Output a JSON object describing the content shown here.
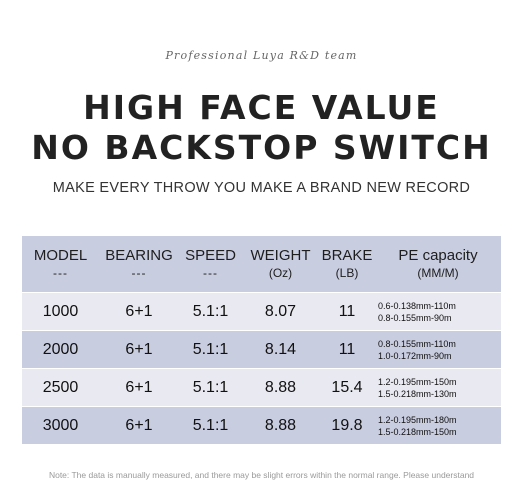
{
  "tagline": "Professional Luya R&D team",
  "headline": {
    "line1": "HIGH FACE VALUE",
    "line2": "NO BACKSTOP SWITCH"
  },
  "subtitle": "MAKE EVERY THROW YOU MAKE A BRAND NEW RECORD",
  "table": {
    "headers": [
      {
        "main": "MODEL",
        "sub": "---"
      },
      {
        "main": "BEARING",
        "sub": "---"
      },
      {
        "main": "SPEED",
        "sub": "---"
      },
      {
        "main": "WEIGHT",
        "sub": "(Oz)"
      },
      {
        "main": "BRAKE",
        "sub": "(LB)"
      },
      {
        "main": "PE capacity",
        "sub": "(MM/M)"
      }
    ],
    "rows": [
      {
        "model": "1000",
        "bearing": "6+1",
        "speed": "5.1:1",
        "weight": "8.07",
        "brake": "11",
        "pe1": "0.6-0.138mm-110m",
        "pe2": "0.8-0.155mm-90m"
      },
      {
        "model": "2000",
        "bearing": "6+1",
        "speed": "5.1:1",
        "weight": "8.14",
        "brake": "11",
        "pe1": "0.8-0.155mm-110m",
        "pe2": "1.0-0.172mm-90m"
      },
      {
        "model": "2500",
        "bearing": "6+1",
        "speed": "5.1:1",
        "weight": "8.88",
        "brake": "15.4",
        "pe1": "1.2-0.195mm-150m",
        "pe2": "1.5-0.218mm-130m"
      },
      {
        "model": "3000",
        "bearing": "6+1",
        "speed": "5.1:1",
        "weight": "8.88",
        "brake": "19.8",
        "pe1": "1.2-0.195mm-180m",
        "pe2": "1.5-0.218mm-150m"
      }
    ]
  },
  "note": "Note: The data is manually measured, and there may be slight errors within the normal range. Please understand",
  "colors": {
    "header_bg": "#c9cde0",
    "row_light": "#e9e9f1",
    "row_dark": "#c9cde0",
    "text": "#222222"
  }
}
